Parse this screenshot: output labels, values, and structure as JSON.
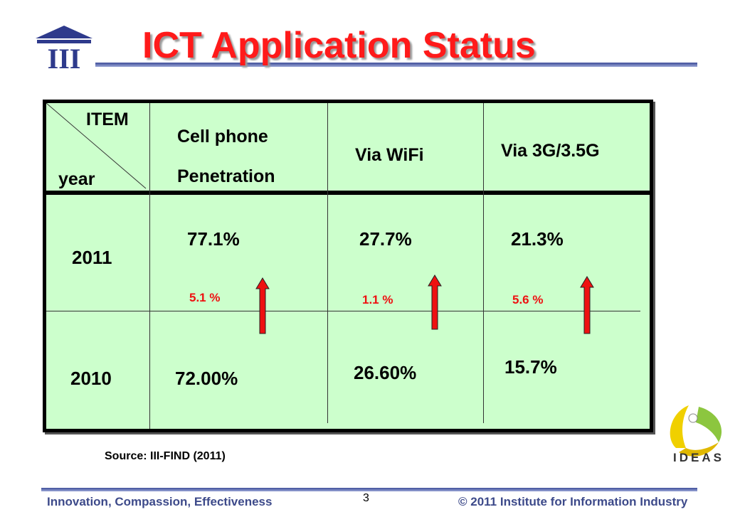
{
  "header": {
    "title": "ICT Application Status",
    "logo_text": "III"
  },
  "table": {
    "corner_item": "ITEM",
    "corner_year": "year",
    "columns": [
      {
        "line1": "Cell phone",
        "line2": "Penetration"
      },
      {
        "line1": "Via WiFi",
        "line2": ""
      },
      {
        "line1": "Via 3G/3.5G",
        "line2": ""
      }
    ],
    "rows": [
      {
        "year": "2011",
        "values": [
          "77.1%",
          "27.7%",
          "21.3%"
        ]
      },
      {
        "year": "2010",
        "values": [
          "72.00%",
          "26.60%",
          "15.7%"
        ]
      }
    ],
    "deltas": [
      "5.1 %",
      "1.1 %",
      "5.6 %"
    ],
    "arrow_color": "#ee1111",
    "background_color": "#ccffcc"
  },
  "source": "Source: III-FIND (2011)",
  "ideas_logo_text": "IDEAS",
  "footer": {
    "left": "Innovation, Compassion, Effectiveness",
    "right": "© 2011 Institute for Information Industry",
    "page_number": "3"
  }
}
